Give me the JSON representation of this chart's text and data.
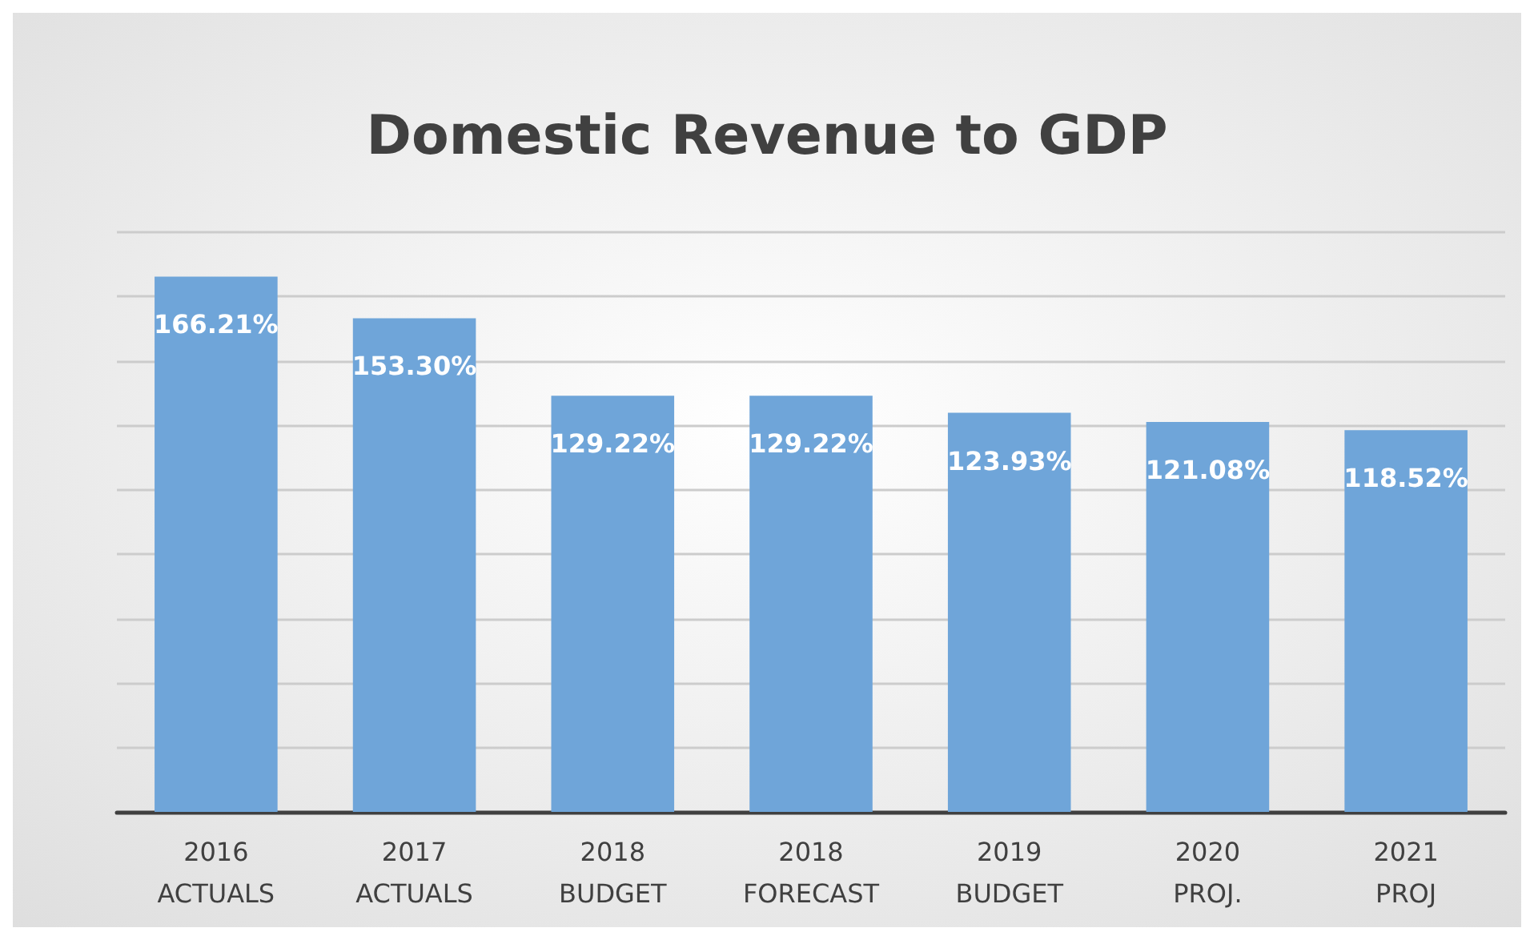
{
  "chart_data": {
    "type": "bar",
    "title": "Domestic Revenue to GDP",
    "categories": [
      "2016 ACTUALS",
      "2017 ACTUALS",
      "2018 BUDGET",
      "2018 FORECAST",
      "2019 BUDGET",
      "2020 PROJ.",
      "2021 PROJ"
    ],
    "values": [
      166.21,
      153.3,
      129.22,
      129.22,
      123.93,
      121.08,
      118.52
    ],
    "value_labels": [
      "166.21%",
      "153.30%",
      "129.22%",
      "129.22%",
      "123.93%",
      "121.08%",
      "118.52%"
    ],
    "color": "#6fa5d9",
    "ylim": [
      0,
      180
    ],
    "yticks": [
      {
        "value": 0,
        "label": null
      },
      {
        "value": 20,
        "label": null
      },
      {
        "value": 40,
        "label": null
      },
      {
        "value": 60,
        "label": null
      },
      {
        "value": 80,
        "label": null
      },
      {
        "value": 100,
        "label": null
      },
      {
        "value": 120,
        "label": null
      },
      {
        "value": 140,
        "label": null
      },
      {
        "value": 160,
        "label": null
      },
      {
        "value": 180,
        "label": null
      }
    ],
    "grid": "y",
    "tick_labels": "x"
  }
}
